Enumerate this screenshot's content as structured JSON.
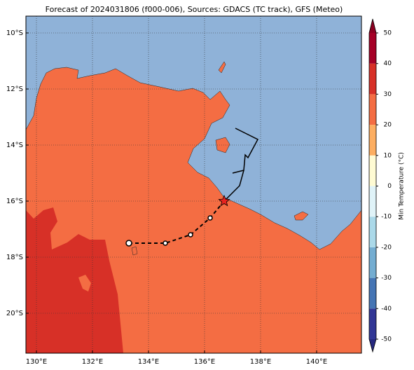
{
  "map": {
    "title": "Forecast of 2024031806 (f000-006), Sources: GDACS (TC track), GFS (Meteo)",
    "lonlim": [
      129.625,
      141.6
    ],
    "latlim": [
      -21.425,
      -9.4
    ],
    "lonticks": [
      {
        "value": 130,
        "label": "130°E"
      },
      {
        "value": 132,
        "label": "132°E"
      },
      {
        "value": 134,
        "label": "134°E"
      },
      {
        "value": 136,
        "label": "136°E"
      },
      {
        "value": 138,
        "label": "138°E"
      },
      {
        "value": 140,
        "label": "140°E"
      }
    ],
    "latticks": [
      {
        "value": -10,
        "label": "10°S"
      },
      {
        "value": -12,
        "label": "12°S"
      },
      {
        "value": -14,
        "label": "14°S"
      },
      {
        "value": -16,
        "label": "16°S"
      },
      {
        "value": -18,
        "label": "18°S"
      },
      {
        "value": -20,
        "label": "20°S"
      }
    ],
    "grid": true,
    "forecast_track": {
      "lon": [
        133.3,
        134.6,
        135.5,
        136.2
      ],
      "lat": [
        -17.5,
        -17.5,
        -17.2,
        -16.6
      ]
    },
    "current_position": {
      "lon": 136.7,
      "lat": -16.0,
      "color": "#e8231f"
    },
    "past_track": {
      "lon": [
        137.1,
        137.9,
        137.55,
        137.45,
        137.4,
        137.0
      ],
      "lat": [
        -13.4,
        -13.8,
        -14.45,
        -14.35,
        -14.9,
        -15.0
      ]
    },
    "past_track_end": {
      "lon": [
        137.4,
        137.25,
        136.7
      ],
      "lat": [
        -14.9,
        -15.45,
        -16.0
      ]
    },
    "colorbar": {
      "label": "Min Temperature (°C)",
      "lim": [
        -50,
        50
      ],
      "ticks": [
        -50,
        -40,
        -30,
        -20,
        -10,
        0,
        10,
        20,
        30,
        40,
        50
      ],
      "colors": [
        "#313695",
        "#4575b4",
        "#74add1",
        "#abd9e9",
        "#e0f3f8",
        "#fffbd3",
        "#fdae61",
        "#f46d43",
        "#d73027",
        "#a50026"
      ],
      "under_color": "#26287f",
      "over_color": "#8b0020"
    }
  }
}
